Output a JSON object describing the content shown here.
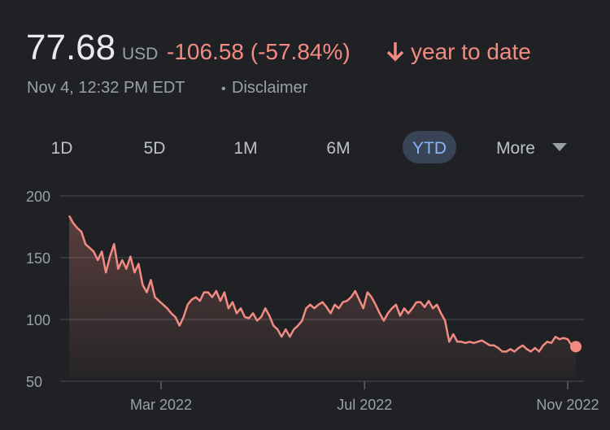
{
  "header": {
    "price": "77.68",
    "currency": "USD",
    "change": "-106.58 (-57.84%)",
    "period": "year to date",
    "timestamp": "Nov 4, 12:32 PM EDT",
    "separator": "•",
    "disclaimer": "Disclaimer"
  },
  "ranges": [
    "1D",
    "5D",
    "1M",
    "6M",
    "YTD",
    "More"
  ],
  "selected_range": 4,
  "chart_data": {
    "type": "line",
    "color": "#f28b82",
    "values": [
      184,
      178,
      174,
      171,
      161,
      158,
      155,
      148,
      155,
      138,
      151,
      161,
      141,
      148,
      141,
      151,
      138,
      145,
      128,
      122,
      132,
      118,
      115,
      112,
      109,
      105,
      102,
      95,
      102,
      112,
      116,
      118,
      115,
      122,
      122,
      118,
      123,
      115,
      122,
      109,
      114,
      105,
      109,
      102,
      101,
      105,
      99,
      102,
      109,
      103,
      95,
      92,
      86,
      92,
      86,
      92,
      95,
      99,
      109,
      112,
      109,
      112,
      114,
      110,
      105,
      112,
      109,
      114,
      115,
      118,
      123,
      116,
      109,
      122,
      118,
      112,
      105,
      99,
      105,
      109,
      112,
      103,
      109,
      105,
      109,
      114,
      114,
      110,
      115,
      109,
      112,
      105,
      99,
      82,
      88,
      82,
      82,
      81,
      82,
      81,
      82,
      83,
      81,
      79,
      79,
      77,
      74,
      74,
      76,
      74,
      77,
      79,
      76,
      74,
      77,
      74,
      79,
      82,
      81,
      86,
      84,
      85,
      84,
      79,
      78
    ],
    "xlim": [
      0,
      124
    ],
    "xticks": [
      {
        "value": 22.5,
        "label": "Mar 2022"
      },
      {
        "value": 72.3,
        "label": "Jul 2022"
      },
      {
        "value": 122,
        "label": "Nov 2022"
      }
    ],
    "ylim": [
      50,
      200
    ],
    "yticks": [
      50,
      100,
      150,
      200
    ],
    "grid": true
  }
}
